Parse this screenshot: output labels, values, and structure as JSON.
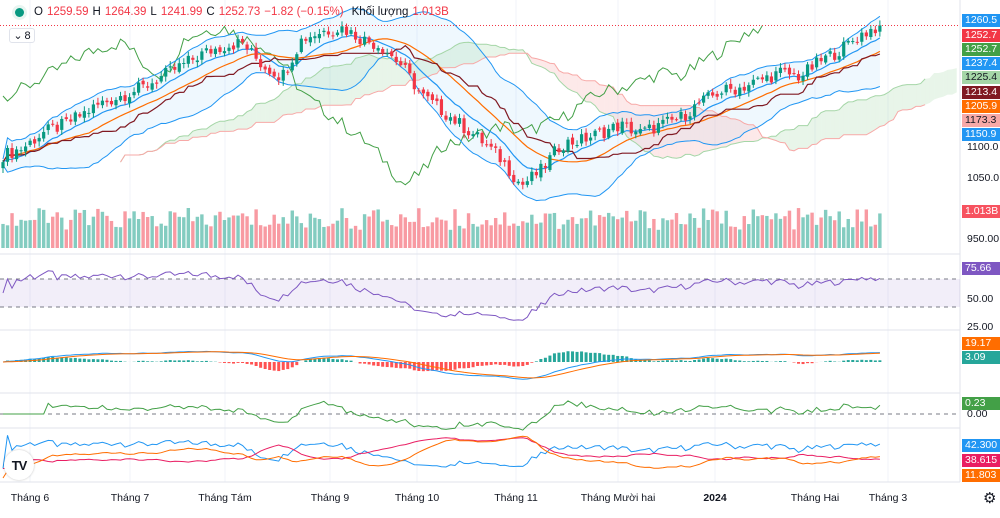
{
  "legend": {
    "open_label": "O",
    "open": "1259.59",
    "high_label": "H",
    "high": "1264.39",
    "low_label": "L",
    "low": "1241.99",
    "close_label": "C",
    "close": "1252.73",
    "change": "−1.82 (−0.15%)",
    "volume_label": "Khối lượng",
    "volume": "1.013B"
  },
  "collapse": {
    "icon": "chevron-down-icon",
    "count": "8"
  },
  "price_tags": [
    {
      "text": "1260.5",
      "color": "#2196f3"
    },
    {
      "text": "1252.7",
      "color": "#f23645"
    },
    {
      "text": "1252.7",
      "color": "#43a047"
    },
    {
      "text": "1237.4",
      "color": "#2196f3"
    },
    {
      "text": "1225.4",
      "color": "#a5d6a7"
    },
    {
      "text": "1213.4",
      "color": "#801922"
    },
    {
      "text": "1205.9",
      "color": "#ff6d00"
    },
    {
      "text": "1173.3",
      "color": "#f7a9a7"
    },
    {
      "text": "1150.9",
      "color": "#2196f3"
    },
    {
      "text": "1.013B",
      "color": "#f7525f"
    },
    {
      "text": "75.66",
      "color": "#7e57c2"
    },
    {
      "text": "19.17",
      "color": "#ff6d00"
    },
    {
      "text": "3.09",
      "color": "#26a69a"
    },
    {
      "text": "0.23",
      "color": "#43a047"
    },
    {
      "text": "42.300",
      "color": "#2196f3"
    },
    {
      "text": "38.615",
      "color": "#e91e63"
    },
    {
      "text": "11.803",
      "color": "#ff6d00"
    }
  ],
  "scale_labels": [
    "1100.0",
    "1050.0",
    "950.00",
    "50.00",
    "25.00",
    "0.00"
  ],
  "time_axis": [
    "Tháng 6",
    "Tháng 7",
    "Tháng Tám",
    "Tháng 9",
    "Tháng 10",
    "Tháng 11",
    "Tháng Mười hai",
    "2024",
    "Tháng Hai",
    "Tháng 3"
  ],
  "logo": "TV",
  "settings_icon": "gear-icon",
  "colors": {
    "up": "#089981",
    "down": "#f23645",
    "bb": "#2196f3",
    "ma_orange": "#ff6d00",
    "ma_brown": "#801922",
    "rsi": "#7e57c2",
    "cloud_up": "#a5d6a7",
    "cloud_down": "#f7a9a7"
  },
  "chart_data": {
    "type": "candlestick",
    "title": "",
    "price_range": [
      940,
      1265
    ],
    "weekly_close": [
      1080,
      1090,
      1110,
      1120,
      1135,
      1150,
      1160,
      1170,
      1185,
      1200,
      1215,
      1225,
      1230,
      1200,
      1185,
      1235,
      1245,
      1250,
      1235,
      1225,
      1200,
      1160,
      1140,
      1120,
      1100,
      1075,
      1040,
      1060,
      1095,
      1100,
      1110,
      1120,
      1110,
      1120,
      1130,
      1150,
      1165,
      1170,
      1180,
      1190,
      1185,
      1205,
      1220,
      1240,
      1252.73
    ],
    "last_values": {
      "rsi": 75.66,
      "macd": 19.17,
      "macd_hist": 3.09,
      "oscillator": 0.23,
      "dmi_plus": 42.3,
      "dmi_minus": 38.615,
      "adx": 11.803
    },
    "rsi_levels": [
      70,
      30
    ],
    "grid": true
  }
}
